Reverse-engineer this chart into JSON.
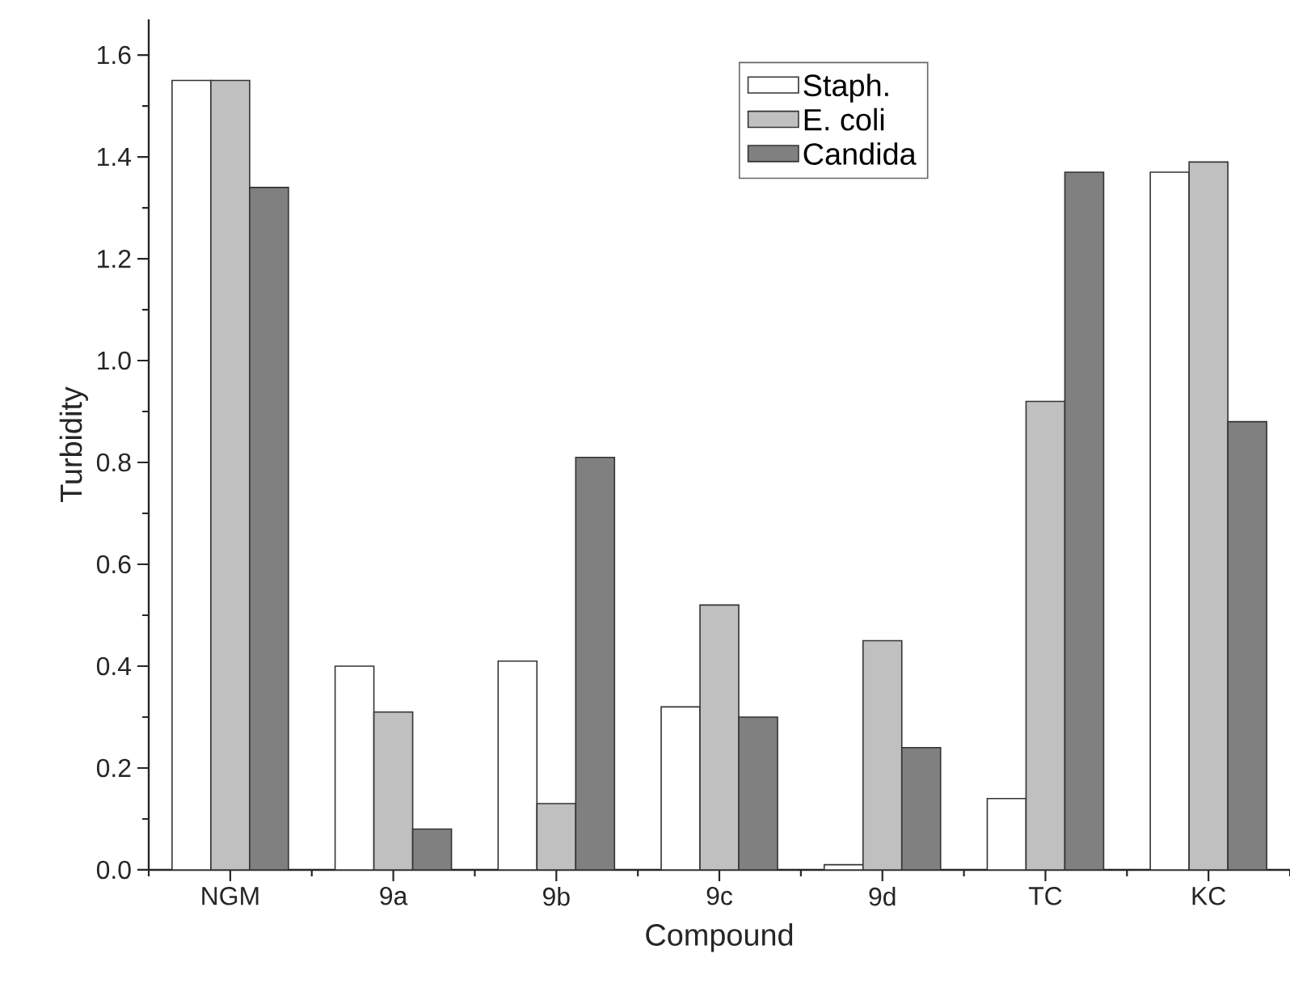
{
  "chart_data": {
    "type": "bar",
    "xlabel": "Compound",
    "ylabel": "Turbidity",
    "categories": [
      "NGM",
      "9a",
      "9b",
      "9c",
      "9d",
      "TC",
      "KC"
    ],
    "series": [
      {
        "name": "Staph.",
        "color": "#ffffff",
        "values": [
          1.55,
          0.4,
          0.41,
          0.32,
          0.01,
          0.14,
          1.37
        ]
      },
      {
        "name": "E. coli",
        "color": "#c0c0c0",
        "values": [
          1.55,
          0.31,
          0.13,
          0.52,
          0.45,
          0.92,
          1.39
        ]
      },
      {
        "name": "Candida",
        "color": "#808080",
        "values": [
          1.34,
          0.08,
          0.81,
          0.3,
          0.24,
          1.37,
          0.88
        ]
      }
    ],
    "ylim": [
      0,
      1.67
    ],
    "yticks": [
      {
        "value": 0,
        "label": "0.0"
      },
      {
        "value": 0.2,
        "label": "0.2"
      },
      {
        "value": 0.4,
        "label": "0.4"
      },
      {
        "value": 0.6,
        "label": "0.6"
      },
      {
        "value": 0.8,
        "label": "0.8"
      },
      {
        "value": 1.0,
        "label": "1.0"
      },
      {
        "value": 1.2,
        "label": "1.2"
      },
      {
        "value": 1.4,
        "label": "1.4"
      },
      {
        "value": 1.6,
        "label": "1.6"
      }
    ],
    "legend": "top"
  }
}
